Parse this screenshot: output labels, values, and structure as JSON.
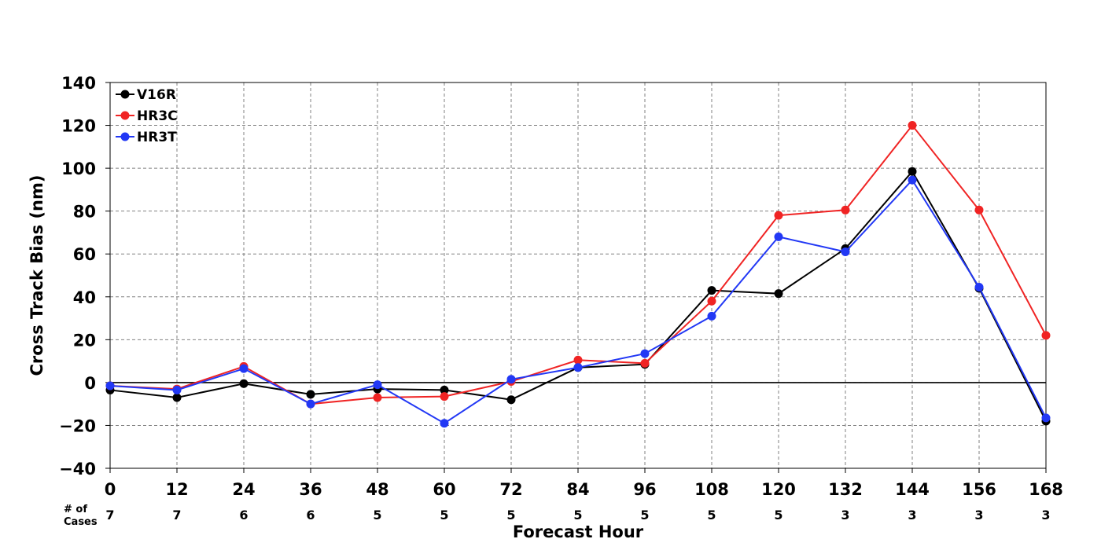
{
  "chart_data": {
    "type": "line",
    "title": "",
    "xlabel": "Forecast Hour",
    "ylabel": "Cross Track Bias (nm)",
    "x": [
      0,
      12,
      24,
      36,
      48,
      60,
      72,
      84,
      96,
      108,
      120,
      132,
      144,
      156,
      168
    ],
    "xlim": [
      0,
      168
    ],
    "ylim": [
      -40,
      140
    ],
    "yticks": [
      -40,
      -20,
      0,
      20,
      40,
      60,
      80,
      100,
      120,
      140
    ],
    "ytick_labels": [
      "−40",
      "−20",
      "0",
      "20",
      "40",
      "60",
      "80",
      "100",
      "120",
      "140"
    ],
    "grid": true,
    "legend_position": "top-left",
    "cases_label": [
      "# of",
      "Cases"
    ],
    "cases": [
      "7",
      "7",
      "6",
      "6",
      "5",
      "5",
      "5",
      "5",
      "5",
      "5",
      "5",
      "3",
      "3",
      "3",
      "3"
    ],
    "series": [
      {
        "name": "V16R",
        "color": "#000000",
        "values": [
          -3.5,
          -7,
          -0.5,
          -5.5,
          -3,
          -3.5,
          -8,
          7,
          8.5,
          43,
          41.5,
          62.5,
          98.5,
          44,
          -18
        ]
      },
      {
        "name": "HR3C",
        "color": "#f02424",
        "values": [
          -1.5,
          -3,
          7.5,
          -10,
          -7,
          -6.5,
          0.5,
          10.5,
          9,
          38,
          78,
          80.5,
          120,
          80.5,
          22
        ]
      },
      {
        "name": "HR3T",
        "color": "#2238f5",
        "values": [
          -1.5,
          -3.5,
          6.5,
          -10,
          -1,
          -19,
          1.5,
          7,
          13.5,
          31,
          68,
          61,
          94.5,
          44.5,
          -16.5
        ]
      }
    ]
  }
}
